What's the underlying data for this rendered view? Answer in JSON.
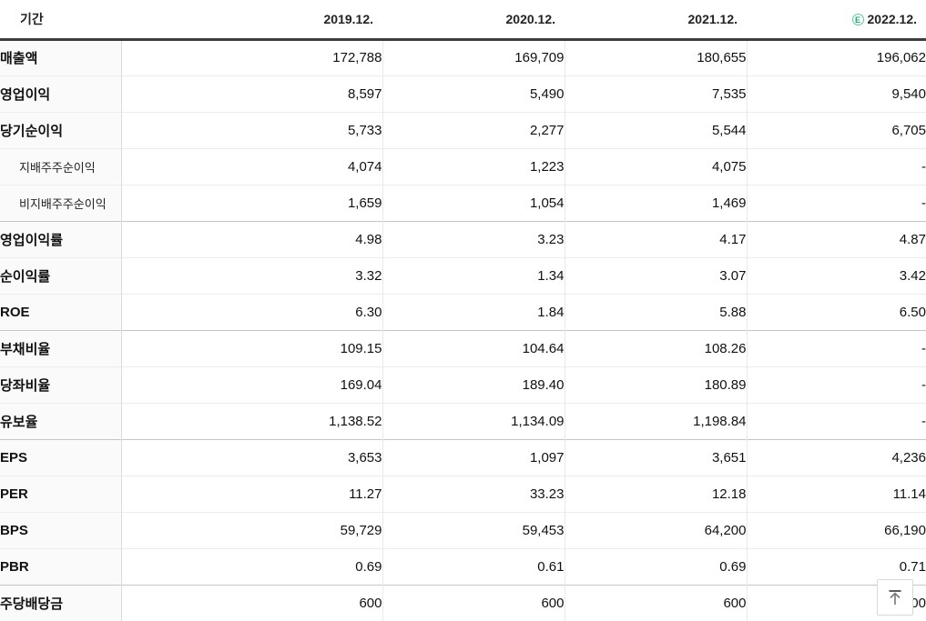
{
  "colors": {
    "estimate_green": "#16a870",
    "header_border": "#3d3d3d",
    "group_border": "#c5c5c5",
    "row_border": "#ececec",
    "label_bg": "#fafafa"
  },
  "table": {
    "columns": [
      {
        "label": "기간"
      },
      {
        "label": "2019.12."
      },
      {
        "label": "2020.12."
      },
      {
        "label": "2021.12."
      },
      {
        "label": "2022.12.",
        "estimate": true,
        "badge": "E"
      }
    ],
    "rows": [
      {
        "label": "매출액",
        "style": "main",
        "group_start": false,
        "values": [
          "172,788",
          "169,709",
          "180,655",
          "196,062"
        ]
      },
      {
        "label": "영업이익",
        "style": "main",
        "group_start": false,
        "values": [
          "8,597",
          "5,490",
          "7,535",
          "9,540"
        ]
      },
      {
        "label": "당기순이익",
        "style": "main",
        "group_start": false,
        "values": [
          "5,733",
          "2,277",
          "5,544",
          "6,705"
        ]
      },
      {
        "label": "지배주주순이익",
        "style": "sub",
        "group_start": false,
        "values": [
          "4,074",
          "1,223",
          "4,075",
          "-"
        ]
      },
      {
        "label": "비지배주주순이익",
        "style": "sub",
        "group_start": false,
        "values": [
          "1,659",
          "1,054",
          "1,469",
          "-"
        ]
      },
      {
        "label": "영업이익률",
        "style": "main",
        "group_start": true,
        "values": [
          "4.98",
          "3.23",
          "4.17",
          "4.87"
        ]
      },
      {
        "label": "순이익률",
        "style": "main",
        "group_start": false,
        "values": [
          "3.32",
          "1.34",
          "3.07",
          "3.42"
        ]
      },
      {
        "label": "ROE",
        "style": "main",
        "group_start": false,
        "values": [
          "6.30",
          "1.84",
          "5.88",
          "6.50"
        ]
      },
      {
        "label": "부채비율",
        "style": "main",
        "group_start": true,
        "values": [
          "109.15",
          "104.64",
          "108.26",
          "-"
        ]
      },
      {
        "label": "당좌비율",
        "style": "main",
        "group_start": false,
        "values": [
          "169.04",
          "189.40",
          "180.89",
          "-"
        ]
      },
      {
        "label": "유보율",
        "style": "main",
        "group_start": false,
        "values": [
          "1,138.52",
          "1,134.09",
          "1,198.84",
          "-"
        ]
      },
      {
        "label": "EPS",
        "style": "main",
        "group_start": true,
        "values": [
          "3,653",
          "1,097",
          "3,651",
          "4,236"
        ]
      },
      {
        "label": "PER",
        "style": "main",
        "group_start": false,
        "values": [
          "11.27",
          "33.23",
          "12.18",
          "11.14"
        ]
      },
      {
        "label": "BPS",
        "style": "main",
        "group_start": false,
        "values": [
          "59,729",
          "59,453",
          "64,200",
          "66,190"
        ]
      },
      {
        "label": "PBR",
        "style": "main",
        "group_start": false,
        "values": [
          "0.69",
          "0.61",
          "0.69",
          "0.71"
        ]
      },
      {
        "label": "주당배당금",
        "style": "main",
        "group_start": true,
        "values": [
          "600",
          "600",
          "600",
          "600"
        ]
      }
    ]
  },
  "scroll_top_button": {
    "icon": "scroll-to-top-arrow"
  }
}
